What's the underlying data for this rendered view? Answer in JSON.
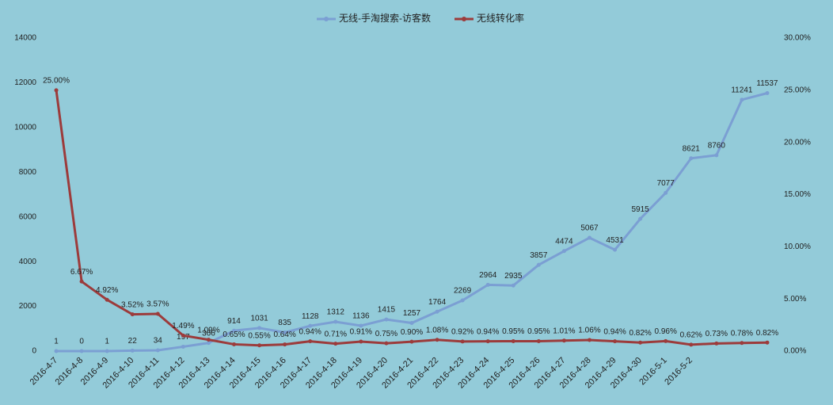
{
  "chart_data": {
    "type": "line",
    "categories": [
      "2016-4-7",
      "2016-4-8",
      "2016-4-9",
      "2016-4-10",
      "2016-4-11",
      "2016-4-12",
      "2016-4-13",
      "2016-4-14",
      "2016-4-15",
      "2016-4-16",
      "2016-4-17",
      "2016-4-18",
      "2016-4-19",
      "2016-4-20",
      "2016-4-21",
      "2016-4-22",
      "2016-4-23",
      "2016-4-24",
      "2016-4-25",
      "2016-4-26",
      "2016-4-27",
      "2016-4-28",
      "2016-4-29",
      "2016-4-30",
      "2016-5-1",
      "2016-5-2",
      null,
      null,
      null
    ],
    "series": [
      {
        "name": "无线-手淘搜索-访客数",
        "color": "#7b9fd3",
        "values": [
          1,
          0,
          1,
          22,
          34,
          197,
          366,
          914,
          1031,
          835,
          1128,
          1312,
          1136,
          1415,
          1257,
          1764,
          2269,
          2964,
          2935,
          3857,
          4474,
          5067,
          4531,
          5915,
          7077,
          8621,
          8760,
          11241,
          11537
        ]
      },
      {
        "name": "无线转化率",
        "color": "#9c3b3b",
        "axis": "y2",
        "values": [
          25.0,
          6.67,
          4.92,
          3.52,
          3.57,
          1.49,
          1.09,
          0.65,
          0.55,
          0.64,
          0.94,
          0.71,
          0.91,
          0.75,
          0.9,
          1.08,
          0.92,
          0.94,
          0.95,
          0.95,
          1.01,
          1.06,
          0.94,
          0.82,
          0.96,
          0.62,
          0.73,
          0.78,
          0.82
        ],
        "value_labels": [
          "25.00%",
          "6.67%",
          "4.92%",
          "3.52%",
          "3.57%",
          "1.49%",
          "1.09%",
          "0.65%",
          "0.55%",
          "0.64%",
          "0.94%",
          "0.71%",
          "0.91%",
          "0.75%",
          "0.90%",
          "1.08%",
          "0.92%",
          "0.94%",
          "0.95%",
          "0.95%",
          "1.01%",
          "1.06%",
          "0.94%",
          "0.82%",
          "0.96%",
          "0.62%",
          "0.73%",
          "0.78%",
          "0.82%"
        ]
      }
    ],
    "ylim": [
      0,
      14000
    ],
    "yticks": [
      0,
      2000,
      4000,
      6000,
      8000,
      10000,
      12000,
      14000
    ],
    "y2lim": [
      0,
      30
    ],
    "y2ticks": [
      {
        "value": 0,
        "label": "0.00%"
      },
      {
        "value": 5,
        "label": "5.00%"
      },
      {
        "value": 10,
        "label": "10.00%"
      },
      {
        "value": 15,
        "label": "15.00%"
      },
      {
        "value": 20,
        "label": "20.00%"
      },
      {
        "value": 25,
        "label": "25.00%"
      },
      {
        "value": 30,
        "label": "30.00%"
      }
    ],
    "legend": "top",
    "grid": false
  }
}
